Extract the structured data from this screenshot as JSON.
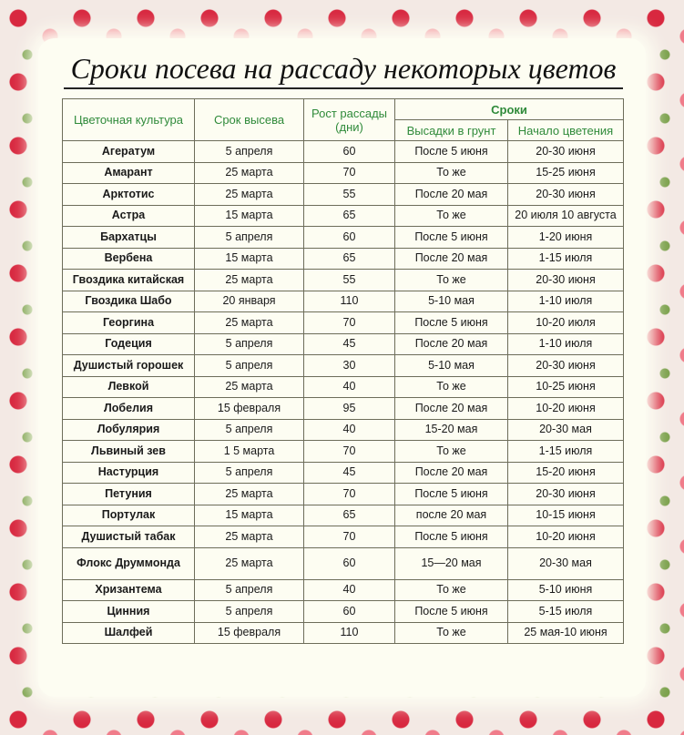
{
  "title": "Сроки посева на рассаду некоторых цветов",
  "headers": {
    "culture": "Цветочная культура",
    "sowing": "Срок высева",
    "growth": "Рост рассады (дни)",
    "terms": "Сроки",
    "planting": "Высадки в грунт",
    "bloom": "Начало цветения"
  },
  "rows": [
    [
      "Агератум",
      "5 апреля",
      "60",
      "После 5 июня",
      "20-30 июня"
    ],
    [
      "Амарант",
      "25 марта",
      "70",
      "То же",
      "15-25 июня"
    ],
    [
      "Арктотис",
      "25 марта",
      "55",
      "После 20 мая",
      "20-30 июня"
    ],
    [
      "Астра",
      "15 марта",
      "65",
      "То же",
      "20 июля 10 августа"
    ],
    [
      "Бархатцы",
      "5 апреля",
      "60",
      "После 5 июня",
      "1-20 июня"
    ],
    [
      "Вербена",
      "15 марта",
      "65",
      "После 20 мая",
      "1-15 июля"
    ],
    [
      "Гвоздика китайская",
      "25 марта",
      "55",
      "То же",
      "20-30 июня"
    ],
    [
      "Гвоздика Шабо",
      "20 января",
      "110",
      "5-10 мая",
      "1-10 июля"
    ],
    [
      "Георгина",
      "25 марта",
      "70",
      "После 5 июня",
      "10-20 июля"
    ],
    [
      "Годеция",
      "5 апреля",
      "45",
      "После 20 мая",
      "1-10 июля"
    ],
    [
      "Душистый горошек",
      "5 апреля",
      "30",
      "5-10 мая",
      "20-30 июня"
    ],
    [
      "Левкой",
      "25 марта",
      "40",
      "То же",
      "10-25 июня"
    ],
    [
      "Лобелия",
      "15 февраля",
      "95",
      "После 20 мая",
      "10-20 июня"
    ],
    [
      "Лобулярия",
      "5 апреля",
      "40",
      "15-20 мая",
      "20-30 мая"
    ],
    [
      "Львиный зев",
      "1 5 марта",
      "70",
      "То же",
      "1-15 июля"
    ],
    [
      "Настурция",
      "5 апреля",
      "45",
      "После 20 мая",
      "15-20 июня"
    ],
    [
      "Петуния",
      "25 марта",
      "70",
      "После 5 июня",
      "20-30 июня"
    ],
    [
      "Портулак",
      "15 марта",
      "65",
      "после 20 мая",
      "10-15 июня"
    ],
    [
      "Душистый табак",
      "25 марта",
      "70",
      "После 5 июня",
      "10-20 июня"
    ],
    [
      "Флокс Друммонда",
      "25 марта",
      "60",
      "15—20 мая",
      "20-30 мая"
    ],
    [
      "Хризантема",
      "5 апреля",
      "40",
      "То же",
      "5-10 июня"
    ],
    [
      "Цинния",
      "5 апреля",
      "60",
      "После 5 июня",
      "5-15 июля"
    ],
    [
      "Шалфей",
      "15 февраля",
      "110",
      "То же",
      "25 мая-10 июня"
    ]
  ]
}
